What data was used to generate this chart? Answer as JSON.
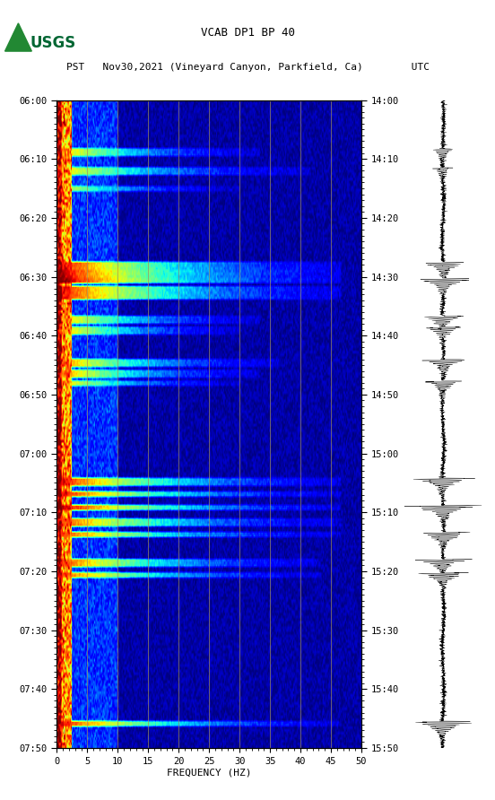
{
  "title_line1": "VCAB DP1 BP 40",
  "title_line2": "PST   Nov30,2021 (Vineyard Canyon, Parkfield, Ca)        UTC",
  "xlabel": "FREQUENCY (HZ)",
  "left_yticks": [
    "06:00",
    "06:10",
    "06:20",
    "06:30",
    "06:40",
    "06:50",
    "07:00",
    "07:10",
    "07:20",
    "07:30",
    "07:40",
    "07:50"
  ],
  "right_yticks": [
    "14:00",
    "14:10",
    "14:20",
    "14:30",
    "14:40",
    "14:50",
    "15:00",
    "15:10",
    "15:20",
    "15:30",
    "15:40",
    "15:50"
  ],
  "xticks": [
    0,
    5,
    10,
    15,
    20,
    25,
    30,
    35,
    40,
    45,
    50
  ],
  "xlim": [
    0,
    50
  ],
  "vgrid_positions": [
    5,
    10,
    15,
    20,
    25,
    30,
    35,
    40,
    45
  ],
  "colormap": "jet",
  "fig_width": 5.52,
  "fig_height": 8.92,
  "usgs_color": "#006633",
  "n_time": 240,
  "n_freq": 300,
  "event_rows": [
    18,
    25,
    32,
    60,
    63,
    66,
    69,
    72,
    80,
    84,
    96,
    100,
    104,
    140,
    145,
    150,
    155,
    160,
    170,
    175,
    230
  ],
  "event_freqs": [
    200,
    250,
    180,
    280,
    280,
    280,
    280,
    280,
    200,
    180,
    220,
    200,
    180,
    280,
    280,
    280,
    280,
    280,
    260,
    260,
    280
  ],
  "event_intensities": [
    0.7,
    0.65,
    0.6,
    0.85,
    0.9,
    0.95,
    0.85,
    0.85,
    0.7,
    0.7,
    0.75,
    0.75,
    0.7,
    0.85,
    0.85,
    0.9,
    0.8,
    0.8,
    0.8,
    0.8,
    0.85
  ]
}
